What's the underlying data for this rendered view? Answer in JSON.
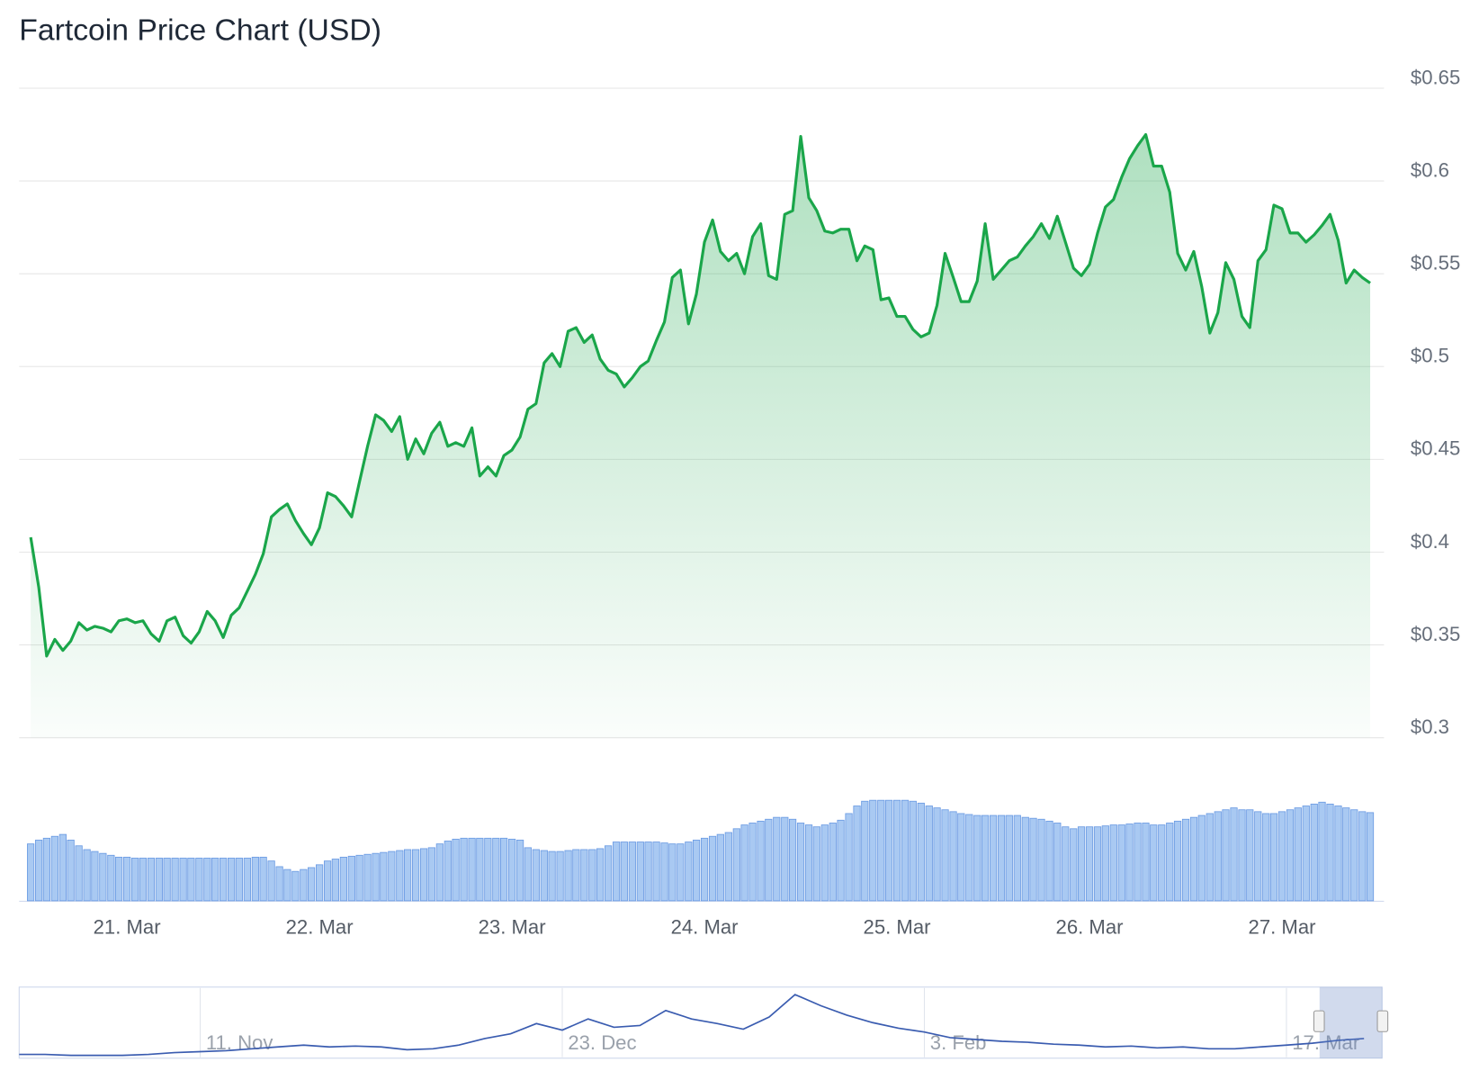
{
  "chart_data": [
    {
      "type": "area",
      "title": "Fartcoin Price Chart (USD)",
      "color": "#1aa64a",
      "grid": true,
      "x": [
        20.5,
        20.542,
        20.583,
        20.625,
        20.667,
        20.708,
        20.75,
        20.792,
        20.833,
        20.875,
        20.917,
        20.958,
        21,
        21.042,
        21.083,
        21.125,
        21.167,
        21.208,
        21.25,
        21.292,
        21.333,
        21.375,
        21.417,
        21.458,
        21.5,
        21.542,
        21.583,
        21.625,
        21.667,
        21.708,
        21.75,
        21.792,
        21.833,
        21.875,
        21.917,
        21.958,
        22,
        22.042,
        22.083,
        22.125,
        22.167,
        22.208,
        22.25,
        22.292,
        22.333,
        22.375,
        22.417,
        22.458,
        22.5,
        22.542,
        22.583,
        22.625,
        22.667,
        22.708,
        22.75,
        22.792,
        22.833,
        22.875,
        22.917,
        22.958,
        23,
        23.042,
        23.083,
        23.125,
        23.167,
        23.208,
        23.25,
        23.292,
        23.333,
        23.375,
        23.417,
        23.458,
        23.5,
        23.542,
        23.583,
        23.625,
        23.667,
        23.708,
        23.75,
        23.792,
        23.833,
        23.875,
        23.917,
        23.958,
        24,
        24.042,
        24.083,
        24.125,
        24.167,
        24.208,
        24.25,
        24.292,
        24.333,
        24.375,
        24.417,
        24.458,
        24.5,
        24.542,
        24.583,
        24.625,
        24.667,
        24.708,
        24.75,
        24.792,
        24.833,
        24.875,
        24.917,
        24.958,
        25,
        25.042,
        25.083,
        25.125,
        25.167,
        25.208,
        25.25,
        25.292,
        25.333,
        25.375,
        25.417,
        25.458,
        25.5,
        25.542,
        25.583,
        25.625,
        25.667,
        25.708,
        25.75,
        25.792,
        25.833,
        25.875,
        25.917,
        25.958,
        26,
        26.042,
        26.083,
        26.125,
        26.167,
        26.208,
        26.25,
        26.292,
        26.333,
        26.375,
        26.417,
        26.458,
        26.5,
        26.542,
        26.583,
        26.625,
        26.667,
        26.708,
        26.75,
        26.792,
        26.833,
        26.875,
        26.917,
        26.958,
        27,
        27.042,
        27.083,
        27.125,
        27.167,
        27.208,
        27.25,
        27.292,
        27.333,
        27.375,
        27.417,
        27.458
      ],
      "values": [
        0.408,
        0.381,
        0.344,
        0.353,
        0.347,
        0.352,
        0.362,
        0.358,
        0.36,
        0.359,
        0.357,
        0.363,
        0.364,
        0.362,
        0.363,
        0.356,
        0.352,
        0.363,
        0.365,
        0.355,
        0.351,
        0.357,
        0.368,
        0.363,
        0.354,
        0.366,
        0.37,
        0.379,
        0.388,
        0.399,
        0.419,
        0.423,
        0.426,
        0.417,
        0.41,
        0.404,
        0.413,
        0.432,
        0.43,
        0.425,
        0.419,
        0.438,
        0.457,
        0.474,
        0.471,
        0.465,
        0.473,
        0.45,
        0.461,
        0.453,
        0.464,
        0.47,
        0.457,
        0.459,
        0.457,
        0.467,
        0.441,
        0.446,
        0.441,
        0.452,
        0.455,
        0.462,
        0.477,
        0.48,
        0.502,
        0.507,
        0.5,
        0.519,
        0.521,
        0.513,
        0.517,
        0.504,
        0.498,
        0.496,
        0.489,
        0.494,
        0.5,
        0.503,
        0.514,
        0.524,
        0.548,
        0.552,
        0.523,
        0.539,
        0.567,
        0.579,
        0.562,
        0.557,
        0.561,
        0.55,
        0.57,
        0.577,
        0.549,
        0.547,
        0.582,
        0.584,
        0.624,
        0.591,
        0.584,
        0.573,
        0.572,
        0.574,
        0.574,
        0.557,
        0.565,
        0.563,
        0.536,
        0.537,
        0.527,
        0.527,
        0.52,
        0.516,
        0.518,
        0.533,
        0.561,
        0.548,
        0.535,
        0.535,
        0.546,
        0.577,
        0.547,
        0.552,
        0.557,
        0.559,
        0.565,
        0.57,
        0.577,
        0.569,
        0.581,
        0.567,
        0.553,
        0.549,
        0.555,
        0.572,
        0.586,
        0.59,
        0.602,
        0.612,
        0.619,
        0.625,
        0.608,
        0.608,
        0.594,
        0.561,
        0.552,
        0.562,
        0.543,
        0.518,
        0.529,
        0.556,
        0.547,
        0.527,
        0.521,
        0.557,
        0.563,
        0.587,
        0.585,
        0.572,
        0.572,
        0.567,
        0.571,
        0.576,
        0.582,
        0.568,
        0.545,
        0.552,
        0.548,
        0.545
      ],
      "xlim": [
        20.44,
        27.53
      ],
      "xticks": [
        {
          "value": 21,
          "label": "21. Mar"
        },
        {
          "value": 22,
          "label": "22. Mar"
        },
        {
          "value": 23,
          "label": "23. Mar"
        },
        {
          "value": 24,
          "label": "24. Mar"
        },
        {
          "value": 25,
          "label": "25. Mar"
        },
        {
          "value": 26,
          "label": "26. Mar"
        },
        {
          "value": 27,
          "label": "27. Mar"
        }
      ],
      "ylim": [
        0.3,
        0.65
      ],
      "yticks": [
        {
          "value": 0.3,
          "label": "$0.3"
        },
        {
          "value": 0.35,
          "label": "$0.35"
        },
        {
          "value": 0.4,
          "label": "$0.4"
        },
        {
          "value": 0.45,
          "label": "$0.45"
        },
        {
          "value": 0.5,
          "label": "$0.5"
        },
        {
          "value": 0.55,
          "label": "$0.55"
        },
        {
          "value": 0.6,
          "label": "$0.6"
        },
        {
          "value": 0.65,
          "label": "$0.65"
        }
      ]
    },
    {
      "type": "bar",
      "color": "#a9c9f2",
      "values": [
        60,
        64,
        66,
        68,
        70,
        64,
        58,
        54,
        52,
        50,
        48,
        46,
        46,
        45,
        45,
        45,
        45,
        45,
        45,
        45,
        45,
        45,
        45,
        45,
        45,
        45,
        45,
        45,
        46,
        46,
        42,
        36,
        33,
        31,
        33,
        35,
        38,
        42,
        44,
        46,
        47,
        48,
        49,
        50,
        51,
        52,
        53,
        54,
        54,
        55,
        56,
        60,
        63,
        65,
        66,
        66,
        66,
        66,
        66,
        66,
        65,
        64,
        56,
        54,
        53,
        52,
        52,
        53,
        54,
        54,
        54,
        55,
        58,
        62,
        62,
        62,
        62,
        62,
        62,
        61,
        60,
        60,
        62,
        64,
        66,
        68,
        70,
        72,
        76,
        80,
        82,
        84,
        86,
        88,
        88,
        86,
        82,
        80,
        78,
        80,
        82,
        85,
        92,
        100,
        105,
        106,
        106,
        106,
        106,
        106,
        105,
        103,
        100,
        98,
        96,
        94,
        92,
        91,
        90,
        90,
        90,
        90,
        90,
        90,
        88,
        87,
        86,
        84,
        82,
        78,
        76,
        78,
        78,
        78,
        79,
        80,
        80,
        81,
        82,
        82,
        80,
        80,
        82,
        84,
        86,
        88,
        90,
        92,
        94,
        96,
        98,
        96,
        96,
        94,
        92,
        92,
        94,
        96,
        98,
        100,
        102,
        104,
        102,
        100,
        98,
        96,
        94,
        93
      ],
      "ylim": [
        0,
        120
      ]
    },
    {
      "type": "line",
      "color": "#3a5cb0",
      "values": [
        0.125,
        0.125,
        0.1,
        0.1,
        0.1,
        0.125,
        0.175,
        0.2,
        0.225,
        0.275,
        0.325,
        0.375,
        0.325,
        0.35,
        0.325,
        0.25,
        0.275,
        0.375,
        0.55,
        0.675,
        0.95,
        0.775,
        1.075,
        0.85,
        0.9,
        1.3,
        1.075,
        0.95,
        0.8,
        1.125,
        1.725,
        1.425,
        1.175,
        0.975,
        0.825,
        0.725,
        0.575,
        0.525,
        0.475,
        0.45,
        0.4,
        0.375,
        0.325,
        0.35,
        0.3,
        0.325,
        0.275,
        0.275,
        0.325,
        0.375,
        0.425,
        0.5,
        0.55
      ],
      "xlim": [
        0,
        52.7
      ],
      "xticks": [
        {
          "value": 7,
          "label": "11. Nov"
        },
        {
          "value": 21,
          "label": "23. Dec"
        },
        {
          "value": 35,
          "label": "3. Feb"
        },
        {
          "value": 49,
          "label": "17. Mar"
        }
      ],
      "ylim": [
        0.05,
        1.9
      ]
    }
  ]
}
